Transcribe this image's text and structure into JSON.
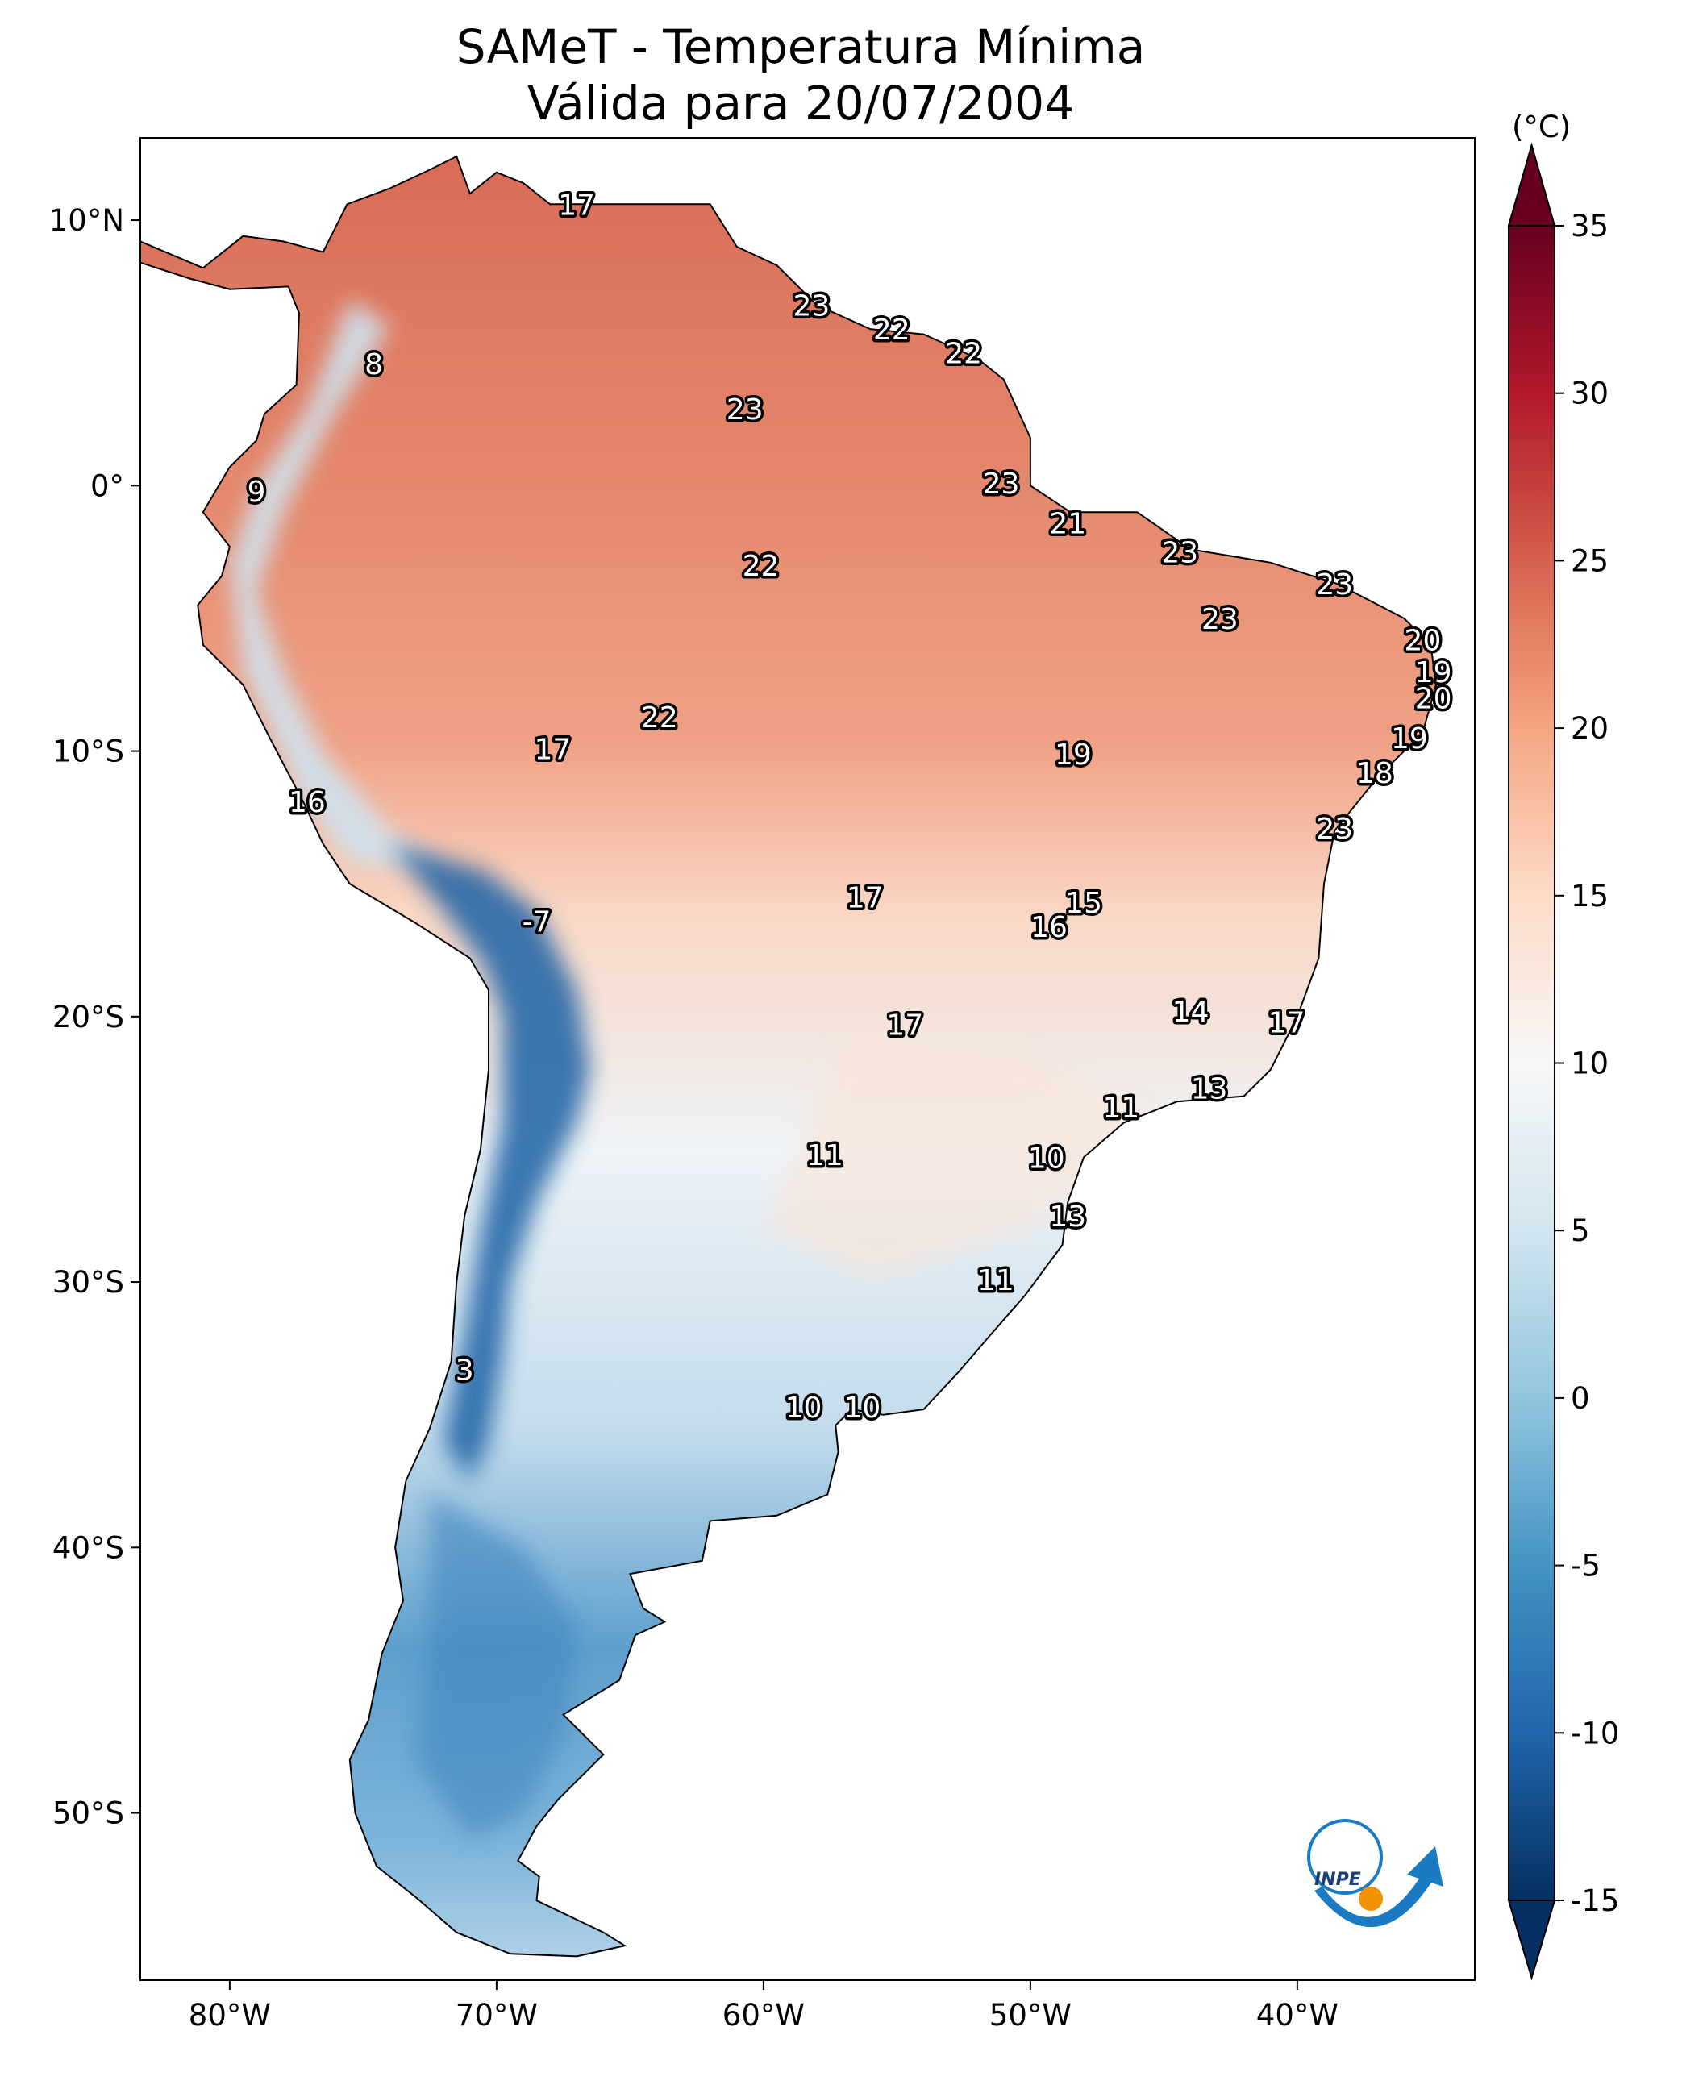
{
  "title": {
    "line1": "SAMeT - Temperatura Mínima",
    "line2": "Válida para 20/07/2004"
  },
  "map": {
    "lon_range": [
      -83.35,
      -33.35
    ],
    "lat_range": [
      -56.3,
      13.1
    ],
    "x_ticks": [
      {
        "lon": -80,
        "label": "80°W"
      },
      {
        "lon": -70,
        "label": "70°W"
      },
      {
        "lon": -60,
        "label": "60°W"
      },
      {
        "lon": -50,
        "label": "50°W"
      },
      {
        "lon": -40,
        "label": "40°W"
      }
    ],
    "y_ticks": [
      {
        "lat": 10,
        "label": "10°N"
      },
      {
        "lat": 0,
        "label": "0°"
      },
      {
        "lat": -10,
        "label": "10°S"
      },
      {
        "lat": -20,
        "label": "20°S"
      },
      {
        "lat": -30,
        "label": "30°S"
      },
      {
        "lat": -40,
        "label": "40°S"
      },
      {
        "lat": -50,
        "label": "50°S"
      }
    ],
    "stations": [
      {
        "lon": -67.0,
        "lat": 10.6,
        "value": "17"
      },
      {
        "lon": -58.2,
        "lat": 6.8,
        "value": "23"
      },
      {
        "lon": -55.2,
        "lat": 5.9,
        "value": "22"
      },
      {
        "lon": -52.5,
        "lat": 5.0,
        "value": "22"
      },
      {
        "lon": -74.6,
        "lat": 4.6,
        "value": "8"
      },
      {
        "lon": -60.7,
        "lat": 2.9,
        "value": "23"
      },
      {
        "lon": -79.0,
        "lat": -0.2,
        "value": "9"
      },
      {
        "lon": -51.1,
        "lat": 0.1,
        "value": "23"
      },
      {
        "lon": -48.6,
        "lat": -1.4,
        "value": "21"
      },
      {
        "lon": -44.4,
        "lat": -2.5,
        "value": "23"
      },
      {
        "lon": -60.1,
        "lat": -3.0,
        "value": "22"
      },
      {
        "lon": -38.6,
        "lat": -3.7,
        "value": "23"
      },
      {
        "lon": -42.9,
        "lat": -5.0,
        "value": "23"
      },
      {
        "lon": -35.3,
        "lat": -5.8,
        "value": "20"
      },
      {
        "lon": -34.9,
        "lat": -7.0,
        "value": "19"
      },
      {
        "lon": -34.9,
        "lat": -8.0,
        "value": "20"
      },
      {
        "lon": -63.9,
        "lat": -8.7,
        "value": "22"
      },
      {
        "lon": -35.8,
        "lat": -9.5,
        "value": "19"
      },
      {
        "lon": -67.9,
        "lat": -9.9,
        "value": "17"
      },
      {
        "lon": -48.4,
        "lat": -10.1,
        "value": "19"
      },
      {
        "lon": -37.1,
        "lat": -10.8,
        "value": "18"
      },
      {
        "lon": -77.1,
        "lat": -11.9,
        "value": "16"
      },
      {
        "lon": -38.6,
        "lat": -12.9,
        "value": "23"
      },
      {
        "lon": -56.2,
        "lat": -15.5,
        "value": "17"
      },
      {
        "lon": -48.0,
        "lat": -15.7,
        "value": "15"
      },
      {
        "lon": -68.5,
        "lat": -16.4,
        "value": "-7"
      },
      {
        "lon": -49.3,
        "lat": -16.6,
        "value": "16"
      },
      {
        "lon": -44.0,
        "lat": -19.8,
        "value": "14"
      },
      {
        "lon": -54.7,
        "lat": -20.3,
        "value": "17"
      },
      {
        "lon": -40.4,
        "lat": -20.2,
        "value": "17"
      },
      {
        "lon": -43.3,
        "lat": -22.7,
        "value": "13"
      },
      {
        "lon": -46.6,
        "lat": -23.4,
        "value": "11"
      },
      {
        "lon": -57.7,
        "lat": -25.2,
        "value": "11"
      },
      {
        "lon": -49.4,
        "lat": -25.3,
        "value": "10"
      },
      {
        "lon": -48.6,
        "lat": -27.5,
        "value": "13"
      },
      {
        "lon": -51.3,
        "lat": -29.9,
        "value": "11"
      },
      {
        "lon": -71.2,
        "lat": -33.3,
        "value": "3"
      },
      {
        "lon": -58.5,
        "lat": -34.7,
        "value": "10"
      },
      {
        "lon": -56.3,
        "lat": -34.7,
        "value": "10"
      }
    ]
  },
  "colorbar": {
    "unit": "(°C)",
    "range": [
      -15,
      35
    ],
    "extend": "both",
    "colormap": "RdBu_r",
    "ticks": [
      "35",
      "30",
      "25",
      "20",
      "15",
      "10",
      "5",
      "0",
      "-5",
      "-10",
      "-15"
    ],
    "colors": {
      "-15": "#053061",
      "-10": "#2166ac",
      "-5": "#4393c3",
      "0": "#92c5de",
      "5": "#d1e5f0",
      "10": "#f7f7f7",
      "15": "#fddbc7",
      "20": "#f4a582",
      "25": "#d6604d",
      "30": "#b2182b",
      "35": "#67001f"
    }
  },
  "logo": {
    "text": "INPE",
    "colors": {
      "blue": "#1a7bc4",
      "orange": "#f39200"
    }
  }
}
